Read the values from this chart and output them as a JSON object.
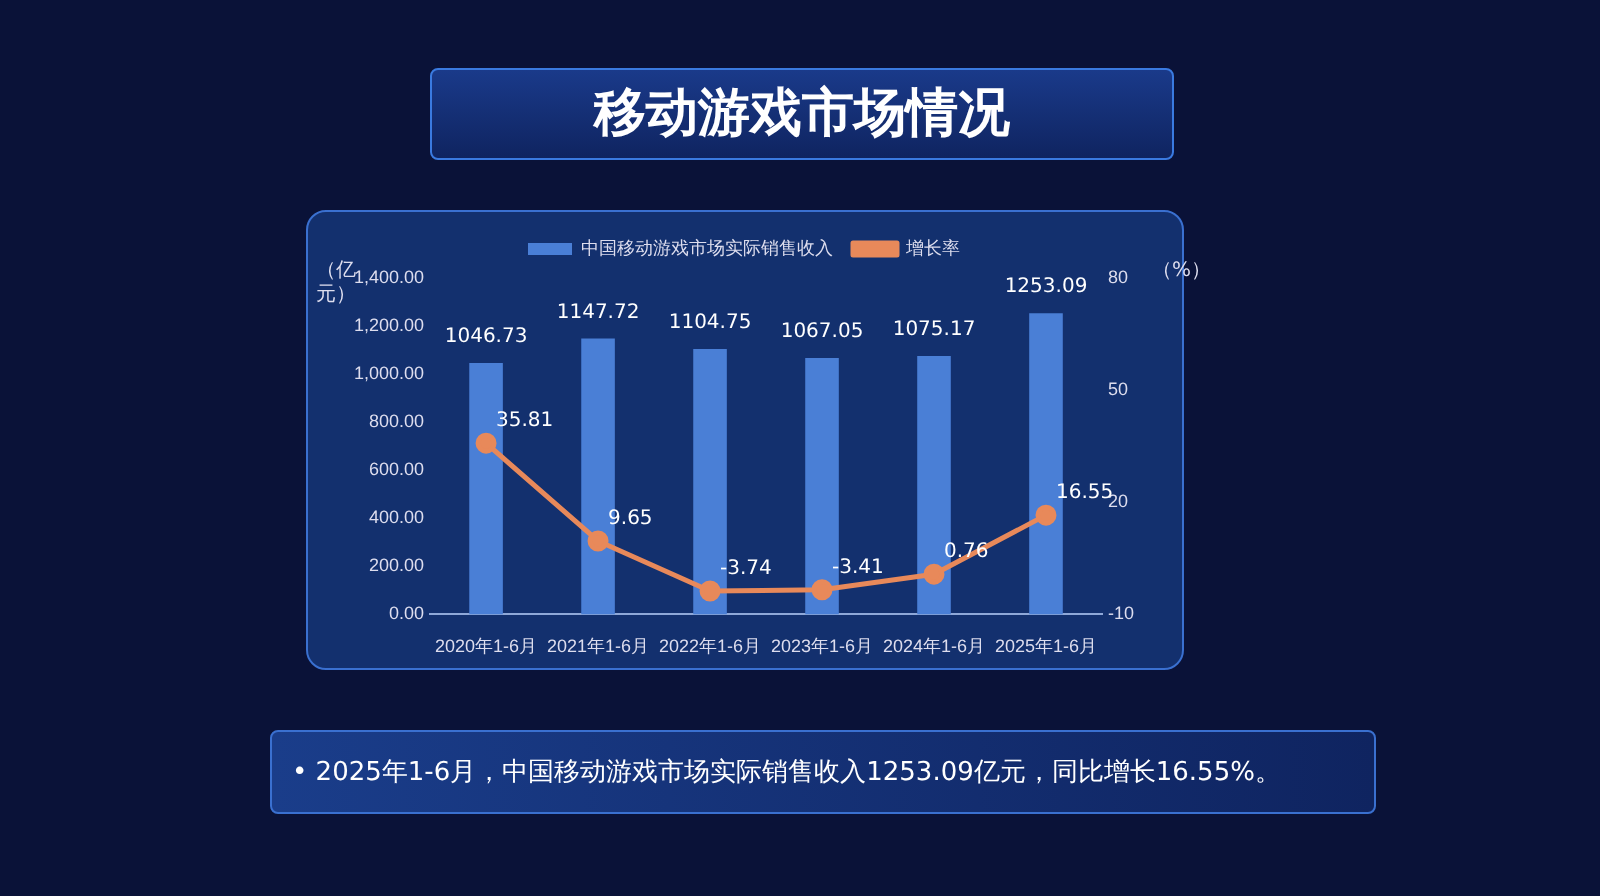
{
  "chart_data": {
    "type": "bar",
    "title": "移动游戏市场情况",
    "ylabel": "（亿元）",
    "y2label": "（%）",
    "categories": [
      "2020年1-6月",
      "2021年1-6月",
      "2022年1-6月",
      "2023年1-6月",
      "2024年1-6月",
      "2025年1-6月"
    ],
    "series": [
      {
        "name": "中国移动游戏市场实际销售收入",
        "color": "#4a7fd6",
        "values": [
          1046.73,
          1147.72,
          1104.75,
          1067.05,
          1075.17,
          1253.09
        ]
      },
      {
        "name": "增长率",
        "type": "line",
        "axis": "y2",
        "color": "#e8895a",
        "values": [
          35.81,
          9.65,
          -3.74,
          -3.41,
          0.76,
          16.55
        ]
      }
    ],
    "ylim": [
      0,
      1400
    ],
    "yticks": [
      {
        "value": 0,
        "label": "0.00"
      },
      {
        "value": 200,
        "label": "200.00"
      },
      {
        "value": 400,
        "label": "400.00"
      },
      {
        "value": 600,
        "label": "600.00"
      },
      {
        "value": 800,
        "label": "800.00"
      },
      {
        "value": 1000,
        "label": "1,000.00"
      },
      {
        "value": 1200,
        "label": "1,200.00"
      },
      {
        "value": 1400,
        "label": "1,400.00"
      }
    ],
    "y2lim": [
      -10,
      80
    ],
    "y2ticks": [
      -10,
      20,
      50,
      80
    ],
    "data_labels": true,
    "legend": "top",
    "grid": false,
    "marker": "circle",
    "line_style": "solid",
    "annotations": [
      "• 2025年1-6月，中国移动游戏市场实际销售收入1253.09亿元，同比增长16.55%。"
    ]
  }
}
